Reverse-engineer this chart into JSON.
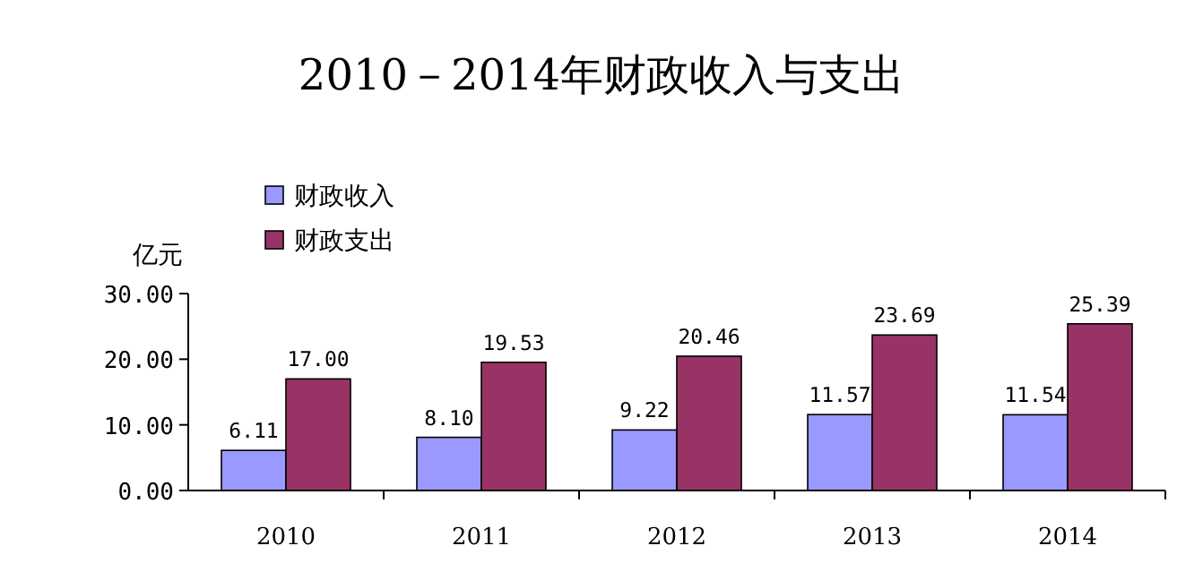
{
  "chart_data": {
    "type": "bar",
    "title": "2010－2014年财政收入与支出",
    "ylabel": "亿元",
    "categories": [
      "2010",
      "2011",
      "2012",
      "2013",
      "2014"
    ],
    "series": [
      {
        "name": "财政收入",
        "color": "#9999ff",
        "values": [
          6.11,
          8.1,
          9.22,
          11.57,
          11.54
        ],
        "value_labels": [
          "6.11",
          "8.10",
          "9.22",
          "11.57",
          "11.54"
        ]
      },
      {
        "name": "财政支出",
        "color": "#993366",
        "values": [
          17.0,
          19.53,
          20.46,
          23.69,
          25.39
        ],
        "value_labels": [
          "17.00",
          "19.53",
          "20.46",
          "23.69",
          "25.39"
        ]
      }
    ],
    "ylim": [
      0,
      30
    ],
    "yticks": [
      {
        "value": 0,
        "label": "0.00"
      },
      {
        "value": 10,
        "label": "10.00"
      },
      {
        "value": 20,
        "label": "20.00"
      },
      {
        "value": 30,
        "label": "30.00"
      }
    ],
    "grid": false,
    "legend": "top left"
  }
}
